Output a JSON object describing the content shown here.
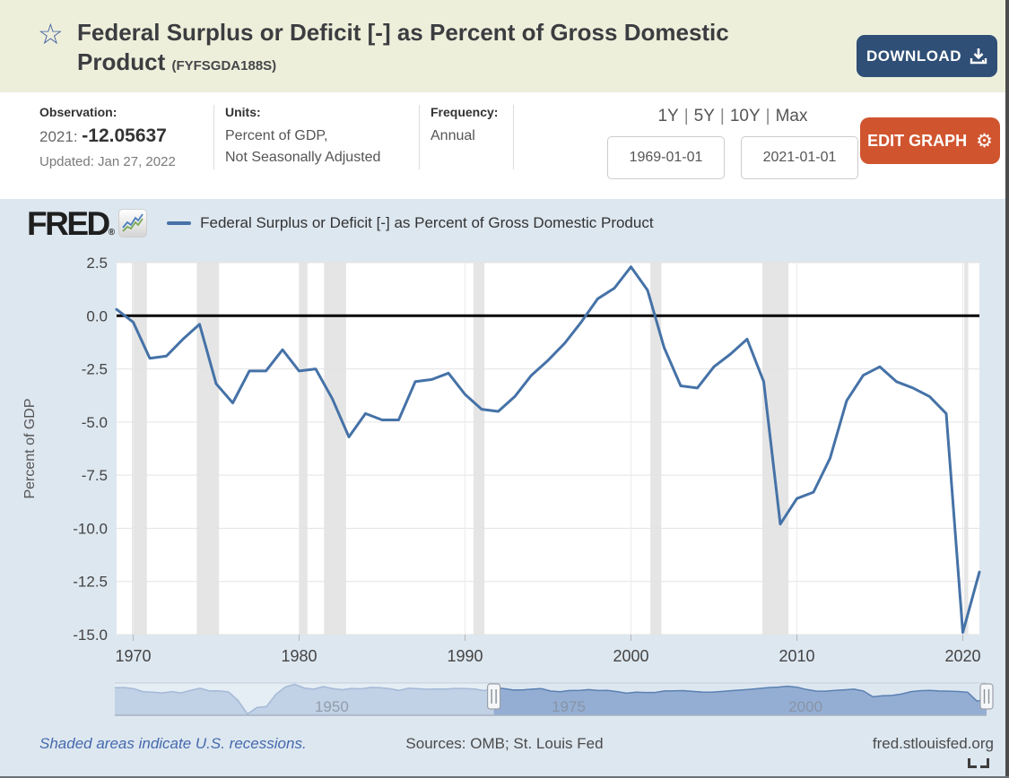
{
  "header": {
    "title_line1": "Federal Surplus or Deficit [-] as Percent of Gross Domestic",
    "title_line2": "Product",
    "series_id": "(FYFSGDA188S)",
    "download_label": "DOWNLOAD"
  },
  "meta": {
    "observation_label": "Observation:",
    "observation_period": "2021:",
    "observation_value": "-12.05637",
    "updated": "Updated: Jan 27, 2022",
    "units_label": "Units:",
    "units_line1": "Percent of GDP,",
    "units_line2": "Not Seasonally Adjusted",
    "frequency_label": "Frequency:",
    "frequency_value": "Annual",
    "range_links": [
      "1Y",
      "5Y",
      "10Y",
      "Max"
    ],
    "date_start": "1969-01-01",
    "date_end": "2021-01-01",
    "edit_graph_label": "EDIT GRAPH"
  },
  "brand": {
    "logo_text": "FRED",
    "registered_mark": "®",
    "legend_label": "Federal Surplus or Deficit [-] as Percent of Gross Domestic Product"
  },
  "icons": {
    "favorite_star": "☆",
    "gear": "⚙"
  },
  "chart_data": {
    "type": "line",
    "title": "Federal Surplus or Deficit [-] as Percent of Gross Domestic Product",
    "xlabel": "",
    "ylabel": "Percent of GDP",
    "xlim": [
      1969,
      2021
    ],
    "ylim": [
      -15,
      2.5
    ],
    "x_ticks": [
      1970,
      1980,
      1990,
      2000,
      2010,
      2020
    ],
    "y_ticks": [
      2.5,
      0,
      -2.5,
      -5,
      -7.5,
      -10,
      -12.5,
      -15
    ],
    "grid": true,
    "zero_line": true,
    "legend_position": "top-left",
    "years": [
      1969,
      1970,
      1971,
      1972,
      1973,
      1974,
      1975,
      1976,
      1977,
      1978,
      1979,
      1980,
      1981,
      1982,
      1983,
      1984,
      1985,
      1986,
      1987,
      1988,
      1989,
      1990,
      1991,
      1992,
      1993,
      1994,
      1995,
      1996,
      1997,
      1998,
      1999,
      2000,
      2001,
      2002,
      2003,
      2004,
      2005,
      2006,
      2007,
      2008,
      2009,
      2010,
      2011,
      2012,
      2013,
      2014,
      2015,
      2016,
      2017,
      2018,
      2019,
      2020,
      2021
    ],
    "values": [
      0.3,
      -0.3,
      -2.0,
      -1.9,
      -1.1,
      -0.4,
      -3.2,
      -4.1,
      -2.6,
      -2.6,
      -1.6,
      -2.6,
      -2.5,
      -3.9,
      -5.7,
      -4.6,
      -4.9,
      -4.9,
      -3.1,
      -3.0,
      -2.7,
      -3.7,
      -4.4,
      -4.5,
      -3.8,
      -2.8,
      -2.1,
      -1.3,
      -0.3,
      0.8,
      1.3,
      2.3,
      1.2,
      -1.5,
      -3.3,
      -3.4,
      -2.4,
      -1.8,
      -1.1,
      -3.1,
      -9.8,
      -8.6,
      -8.3,
      -6.7,
      -4.0,
      -2.8,
      -2.4,
      -3.1,
      -3.4,
      -3.8,
      -4.6,
      -14.9,
      -12.05637
    ],
    "recessions": [
      [
        1969.92,
        1970.83
      ],
      [
        1973.83,
        1975.17
      ],
      [
        1980.0,
        1980.5
      ],
      [
        1981.5,
        1982.83
      ],
      [
        1990.5,
        1991.17
      ],
      [
        2001.17,
        2001.83
      ],
      [
        2007.92,
        2009.5
      ],
      [
        2020.08,
        2020.33
      ]
    ],
    "navigator": {
      "start_year": 1929,
      "values": [
        0.7,
        0.8,
        -0.6,
        -4.0,
        -4.5,
        -5.4,
        -3.9,
        -5.4,
        -2.4,
        -0.1,
        -3.1,
        -2.9,
        -4.3,
        -13.9,
        -29.6,
        -22.2,
        -21.0,
        -7.0,
        1.5,
        4.5,
        0.2,
        -1.1,
        1.9,
        -0.4,
        -1.7,
        -0.3,
        -0.7,
        0.9,
        0.7,
        -0.6,
        -2.5,
        0.1,
        -0.6,
        -1.2,
        -0.8,
        -0.9,
        -0.2,
        -0.5,
        -1.0,
        -2.8,
        0.3,
        -0.3,
        -2.0,
        -1.9,
        -1.1,
        -0.4,
        -3.2,
        -4.1,
        -2.6,
        -2.6,
        -1.6,
        -2.6,
        -2.5,
        -3.9,
        -5.7,
        -4.6,
        -4.9,
        -4.9,
        -3.1,
        -3.0,
        -2.7,
        -3.7,
        -4.4,
        -4.5,
        -3.8,
        -2.8,
        -2.1,
        -1.3,
        -0.3,
        0.8,
        1.3,
        2.3,
        1.2,
        -1.5,
        -3.3,
        -3.4,
        -2.4,
        -1.8,
        -1.1,
        -3.1,
        -9.8,
        -8.6,
        -8.3,
        -6.7,
        -4.0,
        -2.8,
        -2.4,
        -3.1,
        -3.4,
        -3.8,
        -4.6,
        -14.9,
        -12.1
      ],
      "labels": [
        "1950",
        "1975",
        "2000"
      ],
      "selected_range": [
        1969,
        2021
      ],
      "ylim": [
        -31,
        6
      ]
    }
  },
  "footer": {
    "recession_note": "Shaded areas indicate U.S. recessions.",
    "sources": "Sources: OMB; St. Louis Fed",
    "site": "fred.stlouisfed.org"
  },
  "colors": {
    "line": "#4572a7",
    "zero_line": "#000000",
    "recession": "#e5e5e5",
    "grid_h": "#e3e3e3",
    "grid_v": "#ececec",
    "header_bg": "#eeefdb",
    "chart_bg": "#dde7f0",
    "download_button": "#2f4f76",
    "edit_button": "#d0552f",
    "nav_fill": "#8fabd1",
    "nav_line": "#5b80b2",
    "footer_link": "#4569ad"
  }
}
